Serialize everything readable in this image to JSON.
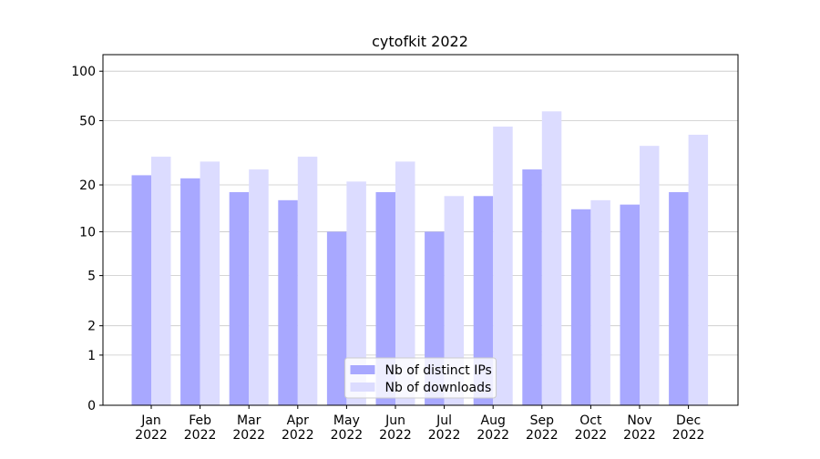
{
  "chart_data": {
    "type": "bar",
    "title": "cytofkit 2022",
    "categories": [
      "Jan\n2022",
      "Feb\n2022",
      "Mar\n2022",
      "Apr\n2022",
      "May\n2022",
      "Jun\n2022",
      "Jul\n2022",
      "Aug\n2022",
      "Sep\n2022",
      "Oct\n2022",
      "Nov\n2022",
      "Dec\n2022"
    ],
    "series": [
      {
        "name": "Nb of distinct IPs",
        "color": "#a8a8ff",
        "values": [
          23,
          22,
          18,
          16,
          10,
          18,
          10,
          17,
          25,
          14,
          15,
          18
        ]
      },
      {
        "name": "Nb of downloads",
        "color": "#dcdcff",
        "values": [
          30,
          28,
          25,
          30,
          21,
          28,
          17,
          46,
          57,
          16,
          35,
          41
        ]
      }
    ],
    "yscale": "log1p",
    "ylim": [
      0,
      126
    ],
    "yticks": [
      0,
      1,
      2,
      5,
      10,
      20,
      50,
      100
    ],
    "grid": true,
    "legend": "lower center"
  }
}
